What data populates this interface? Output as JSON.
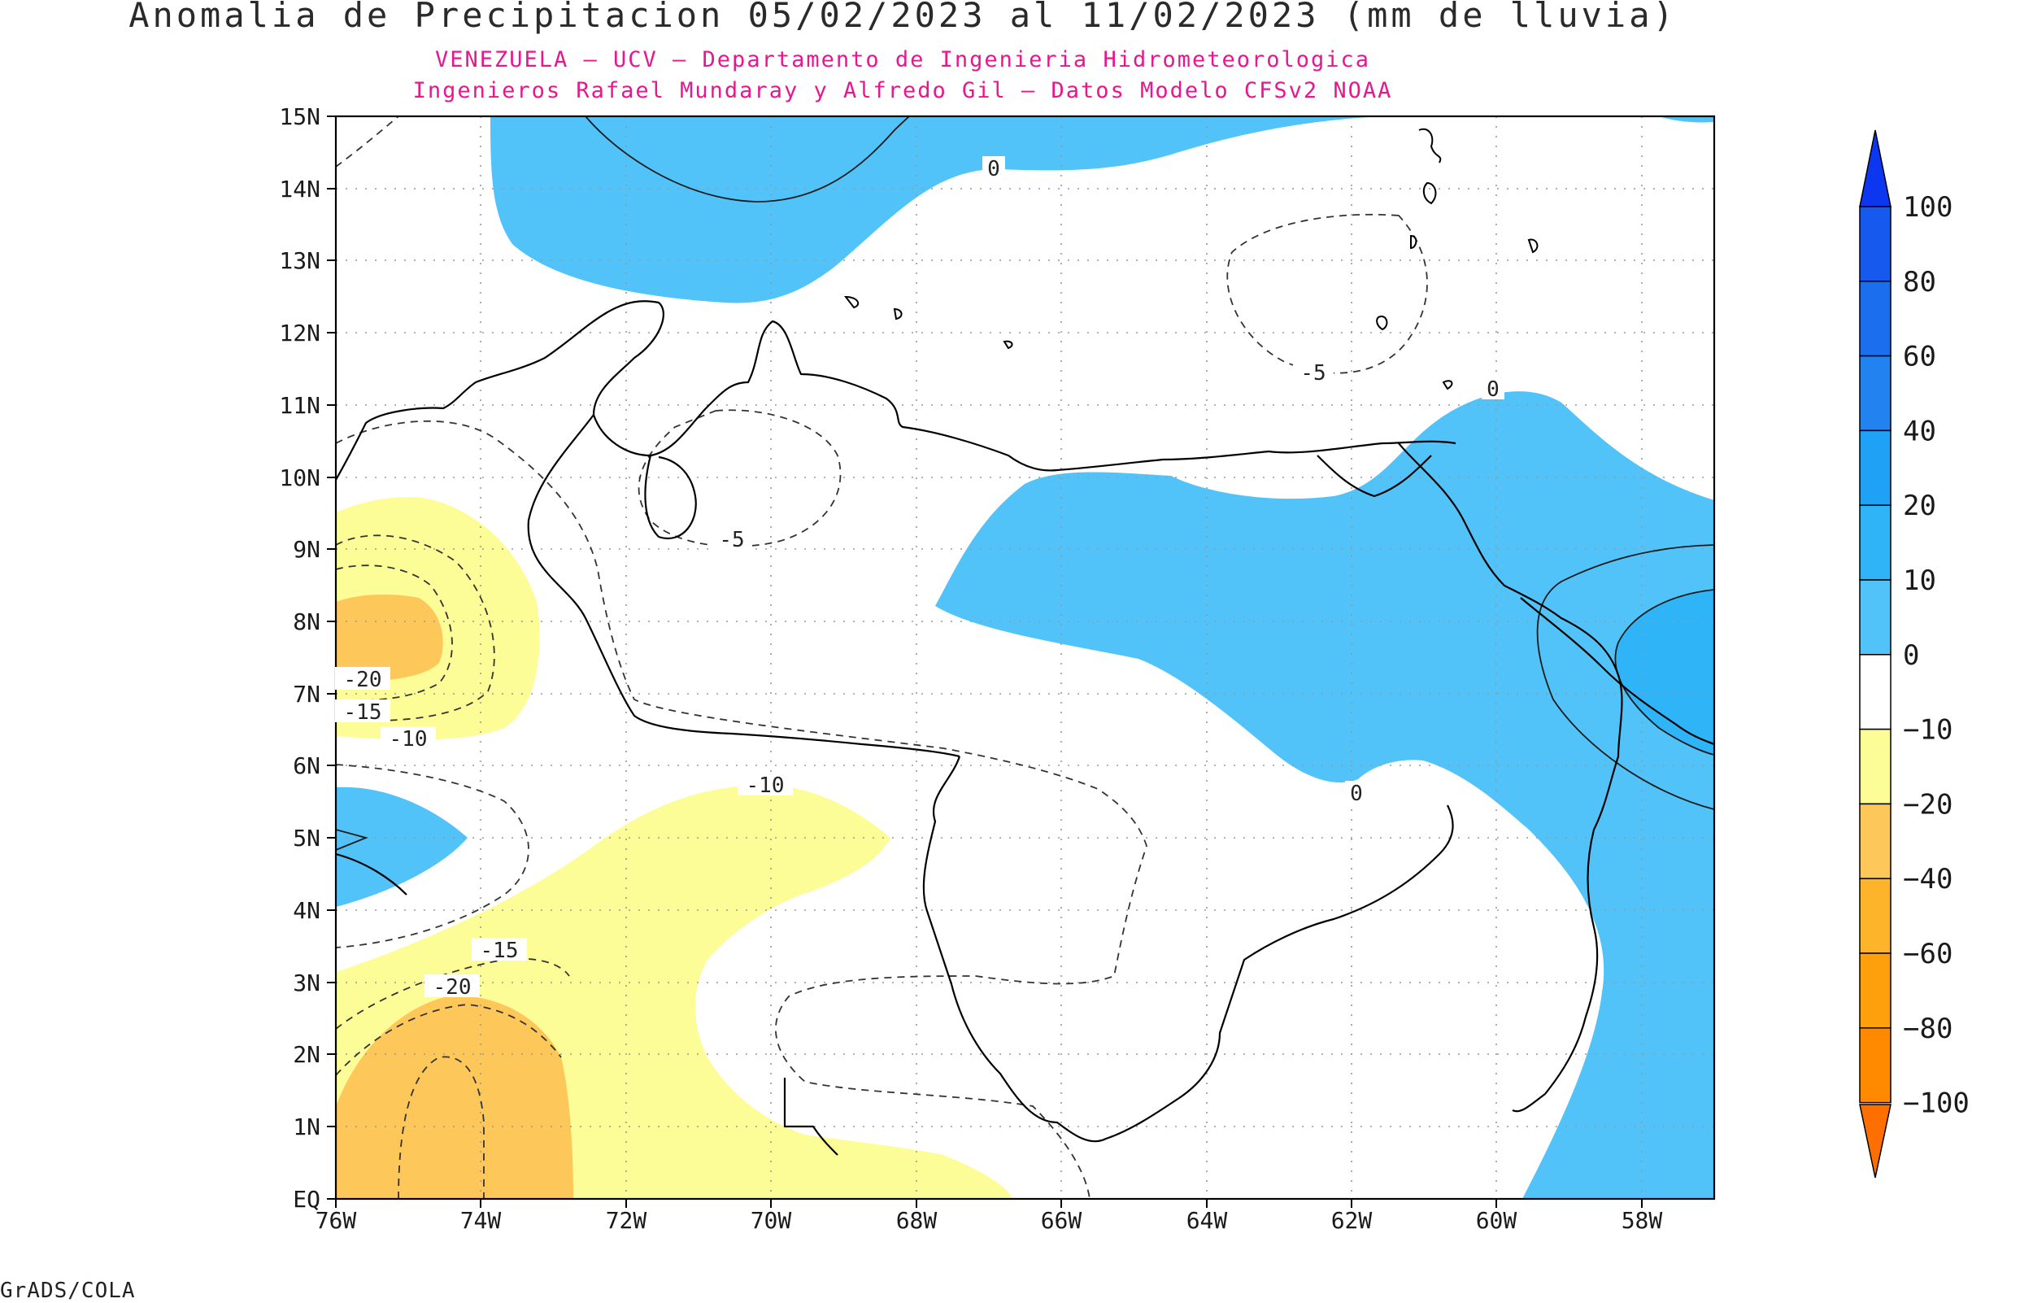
{
  "title": "Anomalia de Precipitacion 05/02/2023 al 11/02/2023 (mm de lluvia)",
  "subtitle_1": "VENEZUELA — UCV — Departamento de Ingenieria Hidrometeorologica",
  "subtitle_2": "Ingenieros Rafael Mundaray y Alfredo Gil — Datos Modelo CFSv2 NOAA",
  "credit": "GrADS/COLA",
  "lat_labels": [
    "15N",
    "14N",
    "13N",
    "12N",
    "11N",
    "10N",
    "9N",
    "8N",
    "7N",
    "6N",
    "5N",
    "4N",
    "3N",
    "2N",
    "1N",
    "EQ"
  ],
  "lon_labels": [
    "76W",
    "74W",
    "72W",
    "70W",
    "68W",
    "66W",
    "64W",
    "62W",
    "60W",
    "58W"
  ],
  "contour_labels": [
    "0",
    "0",
    "0",
    "-5",
    "-5",
    "-10",
    "-10",
    "-15",
    "-15",
    "-20",
    "-20"
  ],
  "legend": {
    "levels": [
      "100",
      "80",
      "60",
      "40",
      "20",
      "10",
      "0",
      "−10",
      "−20",
      "−40",
      "−60",
      "−80",
      "−100"
    ],
    "colors": [
      "#0c36f0",
      "#1659ee",
      "#1b6fef",
      "#2182f0",
      "#1fa2f5",
      "#2fb4f8",
      "#52c3f9",
      "#ffffff",
      "#fdfd97",
      "#fec75a",
      "#fdb32a",
      "#fea00c",
      "#ff8a00",
      "#ff6f00"
    ]
  },
  "colors": {
    "positive": "#52c3f9",
    "positive_strong": "#2fb4f8",
    "negative": "#fdfd97",
    "negative_strong": "#fec75a",
    "boundary": "#000000"
  }
}
